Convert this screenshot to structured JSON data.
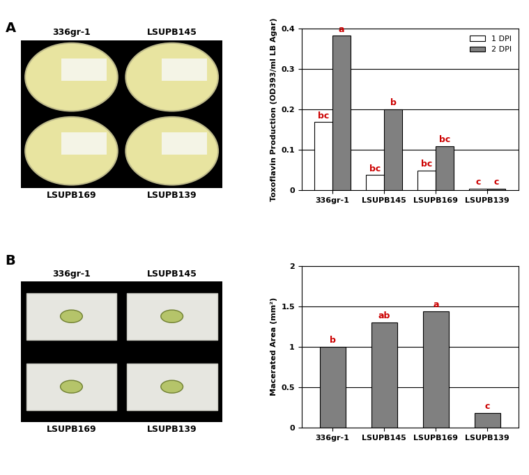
{
  "panels": [
    {
      "letter": "A",
      "photo_labels": [
        "336gr-1",
        "LSUPB145",
        "LSUPB169",
        "LSUPB139"
      ]
    },
    {
      "letter": "B",
      "photo_labels": [
        "336gr-1",
        "LSUPB145",
        "LSUPB169",
        "LSUPB139"
      ]
    }
  ],
  "chart_data": [
    {
      "type": "bar",
      "ylabel": "Toxoflavin Production (OD393/ml LB Agar)",
      "categories": [
        "336gr-1",
        "LSUPB145",
        "LSUPB169",
        "LSUPB139"
      ],
      "series": [
        {
          "name": "1 DPI",
          "color": "#ffffff",
          "values": [
            0.168,
            0.037,
            0.048,
            0.003
          ],
          "letters": [
            "bc",
            "bc",
            "bc",
            "c"
          ]
        },
        {
          "name": "2 DPI",
          "color": "#808080",
          "values": [
            0.382,
            0.2,
            0.109,
            0.003
          ],
          "letters": [
            "a",
            "b",
            "bc",
            "c"
          ]
        }
      ],
      "ylim": [
        0,
        0.4
      ],
      "yticks": [
        0,
        0.1,
        0.2,
        0.3,
        0.4
      ],
      "grid": true,
      "legend": "upper right"
    },
    {
      "type": "bar",
      "ylabel": "Macerated Area (mm²)",
      "categories": [
        "336gr-1",
        "LSUPB145",
        "LSUPB169",
        "LSUPB139"
      ],
      "values": [
        1.0,
        1.3,
        1.44,
        0.18
      ],
      "color": "#808080",
      "letters": [
        "b",
        "ab",
        "a",
        "c"
      ],
      "ylim": [
        0,
        2
      ],
      "yticks": [
        0,
        0.5,
        1,
        1.5,
        2
      ],
      "grid": true
    }
  ]
}
